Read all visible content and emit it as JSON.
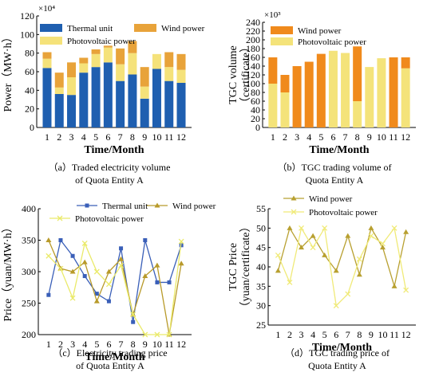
{
  "chart_data": [
    {
      "id": "a",
      "type": "bar",
      "stacked": true,
      "caption": "（a）Traded electricity volume of Quota Entity A",
      "caption_lines": [
        "（a）Traded electricity volume",
        "of Quota Entity A"
      ],
      "xlabel": "Time/Month",
      "ylabel": "Power（MW·h）",
      "scale_label": "×10⁴",
      "ylim": [
        0,
        120
      ],
      "yticks": [
        0,
        20,
        40,
        60,
        80,
        100,
        120
      ],
      "categories": [
        "1",
        "2",
        "3",
        "4",
        "5",
        "6",
        "7",
        "8",
        "9",
        "10",
        "11",
        "12"
      ],
      "legend": "top-left",
      "series": [
        {
          "name": "Thermal unit",
          "color": "#1f5fb0",
          "values": [
            64,
            36,
            35,
            59,
            65,
            70,
            50,
            57,
            31,
            63,
            50,
            48
          ]
        },
        {
          "name": "Photovoltaic power",
          "color": "#f5e27a",
          "values": [
            10,
            7,
            19,
            10,
            14,
            16,
            18,
            23,
            13,
            16,
            15,
            14
          ]
        },
        {
          "name": "Wind power",
          "color": "#e8a33a",
          "values": [
            7,
            16,
            16,
            6,
            5,
            2,
            17,
            13,
            21,
            0,
            16,
            17
          ]
        }
      ]
    },
    {
      "id": "b",
      "type": "bar",
      "stacked": true,
      "caption": "（b）TGC trading volume of Quota Entity A",
      "caption_lines": [
        "（b）TGC trading volume of",
        "Quota Entity A"
      ],
      "xlabel": "Time/Month",
      "ylabel": "TGC volume（certificate）",
      "ylabel_lines": [
        "TGC volume",
        "（certificate）"
      ],
      "scale_label": "×10³",
      "ylim": [
        0,
        240
      ],
      "yticks": [
        0,
        20,
        40,
        60,
        80,
        100,
        120,
        140,
        160,
        180,
        200,
        220,
        240
      ],
      "categories": [
        "1",
        "2",
        "3",
        "4",
        "5",
        "6",
        "7",
        "8",
        "9",
        "10",
        "11",
        "12"
      ],
      "legend": "top-left",
      "series": [
        {
          "name": "Photovoltaic power",
          "color": "#f4e37a",
          "values": [
            100,
            80,
            0,
            0,
            0,
            175,
            170,
            60,
            138,
            158,
            0,
            135
          ]
        },
        {
          "name": "Wind power",
          "color": "#f08a1c",
          "values": [
            60,
            40,
            140,
            150,
            168,
            0,
            0,
            125,
            0,
            0,
            160,
            25
          ]
        }
      ]
    },
    {
      "id": "c",
      "type": "line",
      "caption": "（c）Electricity trading price of Quota Entity A",
      "caption_lines": [
        "（c）Electricity trading price",
        "of Quota Entity A"
      ],
      "xlabel": "Time/Month",
      "ylabel": "Price（yuan/MW·h）",
      "ylim": [
        200,
        400
      ],
      "yticks": [
        200,
        250,
        300,
        350,
        400
      ],
      "x": [
        1,
        2,
        3,
        4,
        5,
        6,
        7,
        8,
        9,
        10,
        11,
        12
      ],
      "legend": "top",
      "series": [
        {
          "name": "Thermal unit",
          "color": "#3a5fb8",
          "marker": "square",
          "values": [
            263,
            350,
            325,
            293,
            265,
            253,
            337,
            220,
            350,
            283,
            283,
            342
          ]
        },
        {
          "name": "Wind power",
          "color": "#b89a2a",
          "marker": "triangle",
          "values": [
            350,
            305,
            300,
            315,
            253,
            300,
            320,
            232,
            293,
            310,
            200,
            313
          ]
        },
        {
          "name": "Photovoltaic power",
          "color": "#eaea6a",
          "marker": "x",
          "values": [
            325,
            305,
            258,
            345,
            300,
            280,
            310,
            232,
            200,
            200,
            200,
            348
          ]
        }
      ]
    },
    {
      "id": "d",
      "type": "line",
      "caption": "（d）TGC trading price of Quota Entity A",
      "caption_lines": [
        "（d）TGC trading price of",
        "Quota Entity A"
      ],
      "xlabel": "Time/Month",
      "ylabel": "TGC Price（yuan/certificate）",
      "ylabel_lines": [
        "TGC Price",
        "（yuan/certificate）"
      ],
      "ylim": [
        25,
        55
      ],
      "yticks": [
        25,
        30,
        35,
        40,
        45,
        50,
        55
      ],
      "x": [
        1,
        2,
        3,
        4,
        5,
        6,
        7,
        8,
        9,
        10,
        11,
        12
      ],
      "legend": "top",
      "series": [
        {
          "name": "Wind power",
          "color": "#b8a030",
          "marker": "triangle",
          "values": [
            39,
            50,
            45,
            48,
            43,
            39,
            48,
            38,
            50,
            45,
            35,
            49
          ]
        },
        {
          "name": "Photovoltaic power",
          "color": "#f0ea78",
          "marker": "x",
          "values": [
            43,
            36,
            50,
            45,
            50,
            30,
            33,
            42,
            48,
            46,
            50,
            34
          ]
        }
      ]
    }
  ]
}
